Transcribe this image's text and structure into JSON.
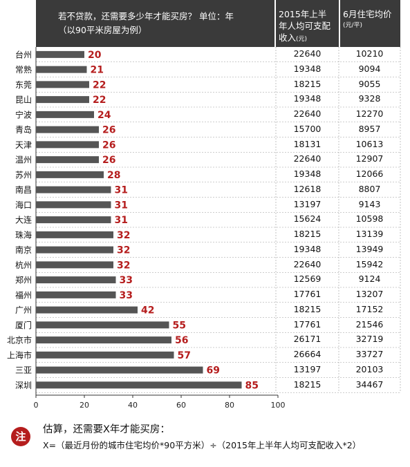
{
  "header": {
    "title_line1": "若不贷款，还需要多少年才能买房？ 单位：年",
    "title_line2": "（以90平米房屋为例）",
    "col_income_line1": "2015年上半",
    "col_income_line2": "年人均可支配",
    "col_income_line3": "收入",
    "col_income_unit": "(元)",
    "col_price_line1": "6月住宅均价",
    "col_price_unit": "(元/平)"
  },
  "note": {
    "badge": "注",
    "title": "估算，还需要X年才能买房：",
    "formula": "X=（最近月份的城市住宅均价*90平方米）÷（2015年上半年人均可支配收入*2）"
  },
  "chart_data": {
    "type": "bar",
    "orientation": "horizontal",
    "title": "若不贷款，还需要多少年才能买房？ 单位：年",
    "subtitle": "（以90平米房屋为例）",
    "xlabel": "",
    "ylabel": "",
    "xlim": [
      0,
      100
    ],
    "xticks": [
      "0",
      "20",
      "40",
      "60",
      "80",
      "100"
    ],
    "categories": [
      "台州",
      "常熟",
      "东莞",
      "昆山",
      "宁波",
      "青岛",
      "天津",
      "温州",
      "苏州",
      "南昌",
      "海口",
      "大连",
      "珠海",
      "南京",
      "杭州",
      "郑州",
      "福州",
      "广州",
      "厦门",
      "北京市",
      "上海市",
      "三亚",
      "深圳"
    ],
    "values": [
      20,
      21,
      22,
      22,
      24,
      26,
      26,
      26,
      28,
      31,
      31,
      31,
      32,
      32,
      32,
      33,
      33,
      42,
      55,
      56,
      57,
      69,
      85
    ],
    "income": [
      "22640",
      "19348",
      "18215",
      "19348",
      "22640",
      "15700",
      "18131",
      "22640",
      "19348",
      "12618",
      "13197",
      "15624",
      "18215",
      "19348",
      "22640",
      "12569",
      "17761",
      "18215",
      "17761",
      "26171",
      "26664",
      "13197",
      "18215"
    ],
    "price": [
      "10210",
      "9094",
      "9055",
      "9328",
      "12270",
      "8957",
      "10613",
      "12907",
      "12066",
      "8807",
      "9143",
      "10598",
      "13139",
      "13949",
      "15942",
      "9124",
      "13207",
      "17152",
      "21546",
      "32719",
      "33727",
      "20103",
      "34467"
    ],
    "bar_color": "#555555",
    "label_color": "#b51d1d",
    "grid": false
  }
}
